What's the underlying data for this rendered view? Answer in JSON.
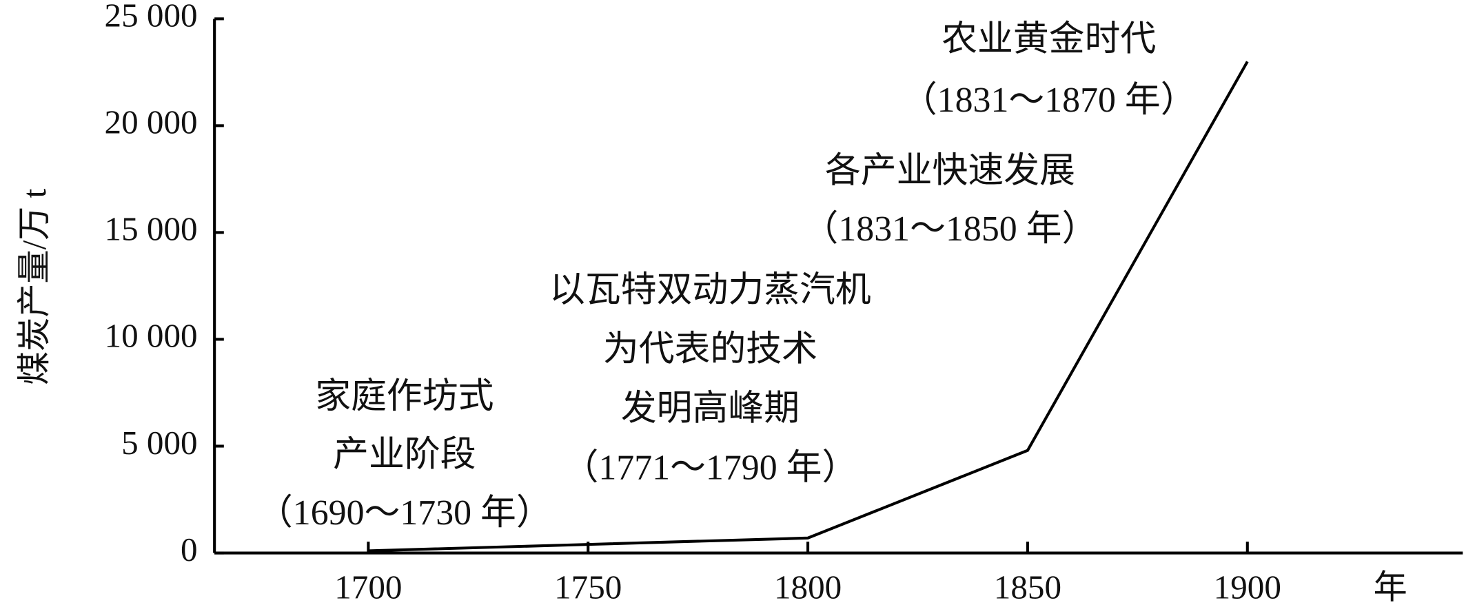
{
  "chart_data": {
    "type": "line",
    "y_label": "煤炭产量/万 t",
    "x_label": "年",
    "x": [
      1700,
      1750,
      1800,
      1850,
      1900
    ],
    "series": [
      {
        "color": "#000000",
        "values": [
          100,
          400,
          700,
          4800,
          23000
        ]
      }
    ],
    "xlim": [
      1665,
      1949
    ],
    "xticks": [
      1700,
      1750,
      1800,
      1850,
      1900
    ],
    "ylim": [
      0,
      25000
    ],
    "yticks": [
      0,
      {
        "value": 5000,
        "label": "5 000"
      },
      {
        "value": 10000,
        "label": "10 000"
      },
      {
        "value": 15000,
        "label": "15 000"
      },
      {
        "value": 20000,
        "label": "20 000"
      },
      {
        "value": 25000,
        "label": "25 000"
      }
    ],
    "grid": false,
    "annotations": [
      [
        "家庭作坊式",
        "产业阶段",
        "（1690～1730 年）"
      ],
      [
        "以瓦特双动力蒸汽机",
        "为代表的技术",
        "发明高峰期",
        "（1771～1790 年）"
      ],
      [
        "各产业快速发展",
        "（1831～1850 年）"
      ],
      [
        "农业黄金时代",
        "（1831～1870 年）"
      ]
    ]
  }
}
